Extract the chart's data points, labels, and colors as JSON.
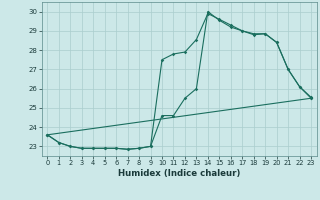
{
  "xlabel": "Humidex (Indice chaleur)",
  "bg_color": "#cce8e8",
  "grid_color": "#aacece",
  "line_color": "#1a6e5e",
  "xlim": [
    -0.5,
    23.5
  ],
  "ylim": [
    22.5,
    30.5
  ],
  "yticks": [
    23,
    24,
    25,
    26,
    27,
    28,
    29,
    30
  ],
  "xticks": [
    0,
    1,
    2,
    3,
    4,
    5,
    6,
    7,
    8,
    9,
    10,
    11,
    12,
    13,
    14,
    15,
    16,
    17,
    18,
    19,
    20,
    21,
    22,
    23
  ],
  "line1_x": [
    0,
    1,
    2,
    3,
    4,
    5,
    6,
    7,
    8,
    9,
    10,
    11,
    12,
    13,
    14,
    15,
    16,
    17,
    18,
    19,
    20,
    21,
    22,
    23
  ],
  "line1_y": [
    23.6,
    23.2,
    23.0,
    22.9,
    22.9,
    22.9,
    22.9,
    22.85,
    22.9,
    23.0,
    27.5,
    27.8,
    27.9,
    28.55,
    29.9,
    29.6,
    29.3,
    29.0,
    28.8,
    28.85,
    28.4,
    27.0,
    26.1,
    25.5
  ],
  "line2_x": [
    0,
    1,
    2,
    3,
    4,
    5,
    6,
    7,
    8,
    9,
    10,
    11,
    12,
    13,
    14,
    15,
    16,
    17,
    18,
    19,
    20,
    21,
    22,
    23
  ],
  "line2_y": [
    23.6,
    23.2,
    23.0,
    22.9,
    22.9,
    22.9,
    22.9,
    22.85,
    22.9,
    23.0,
    24.6,
    24.6,
    25.5,
    26.0,
    30.0,
    29.55,
    29.2,
    29.0,
    28.85,
    28.85,
    28.4,
    27.0,
    26.1,
    25.55
  ],
  "line3_x": [
    0,
    23
  ],
  "line3_y": [
    23.6,
    25.5
  ]
}
